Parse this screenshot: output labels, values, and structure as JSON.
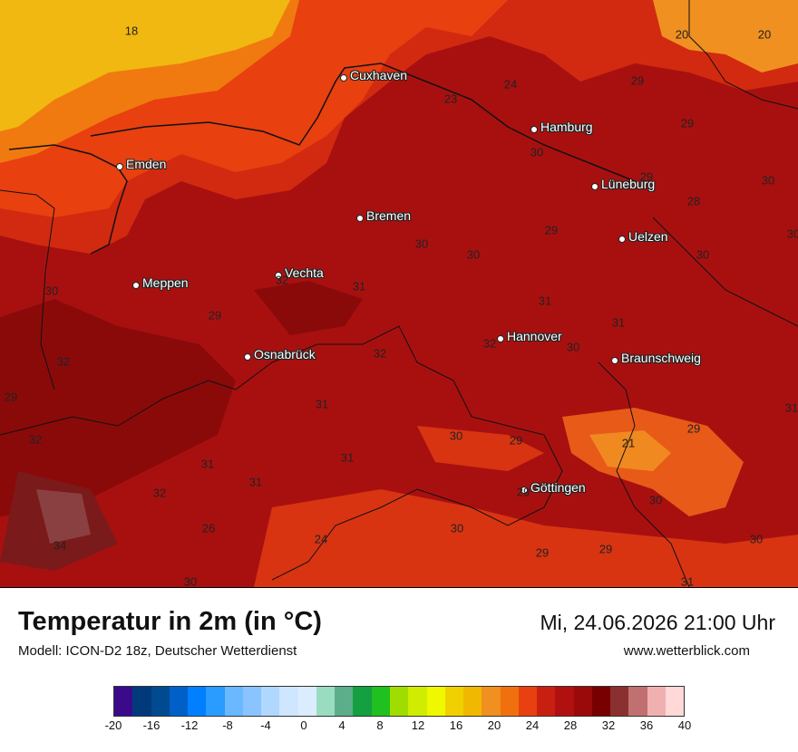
{
  "map": {
    "cities": [
      {
        "name": "Cuxhaven"
      },
      {
        "name": "Emden"
      },
      {
        "name": "Hamburg"
      },
      {
        "name": "Lüneburg"
      },
      {
        "name": "Bremen"
      },
      {
        "name": "Uelzen"
      },
      {
        "name": "Vechta"
      },
      {
        "name": "Meppen"
      },
      {
        "name": "Hannover"
      },
      {
        "name": "Osnabrück"
      },
      {
        "name": "Braunschweig"
      },
      {
        "name": "Göttingen"
      }
    ],
    "temperature_labels": [
      "18",
      "20",
      "20",
      "24",
      "23",
      "29",
      "29",
      "30",
      "29",
      "28",
      "30",
      "30",
      "30",
      "29",
      "30",
      "30",
      "31",
      "31",
      "30",
      "32",
      "29",
      "31",
      "32",
      "32",
      "30",
      "29",
      "32",
      "31",
      "31",
      "31",
      "30",
      "29",
      "21",
      "29",
      "31",
      "31",
      "32",
      "29",
      "30",
      "26",
      "24",
      "34",
      "30",
      "29",
      "29",
      "30",
      "31",
      "32",
      "30"
    ]
  },
  "footer": {
    "title": "Temperatur in 2m (in °C)",
    "model": "Modell: ICON-D2 18z, Deutscher Wetterdienst",
    "datetime": "Mi, 24.06.2026 21:00 Uhr",
    "website": "www.wetterblick.com"
  },
  "legend": {
    "ticks": [
      "-20",
      "-16",
      "-12",
      "-8",
      "-4",
      "0",
      "4",
      "8",
      "12",
      "16",
      "20",
      "24",
      "28",
      "32",
      "36",
      "40"
    ],
    "colors": [
      "#3a0a8a",
      "#003a7a",
      "#004a90",
      "#0060c8",
      "#0080ff",
      "#2a9cff",
      "#6ab8ff",
      "#8ac4ff",
      "#b0d8ff",
      "#cfe6ff",
      "#dcecff",
      "#99dcc0",
      "#5cae8a",
      "#14a040",
      "#20c020",
      "#a0dc00",
      "#d0ec00",
      "#f0f800",
      "#f0d000",
      "#f0b800",
      "#f09020",
      "#f07010",
      "#e84010",
      "#c82010",
      "#b01010",
      "#9a0a0a",
      "#780000",
      "#8a3030",
      "#c07070",
      "#f0b0b0",
      "#ffd8d8"
    ],
    "accent_hot": "#a81010"
  }
}
